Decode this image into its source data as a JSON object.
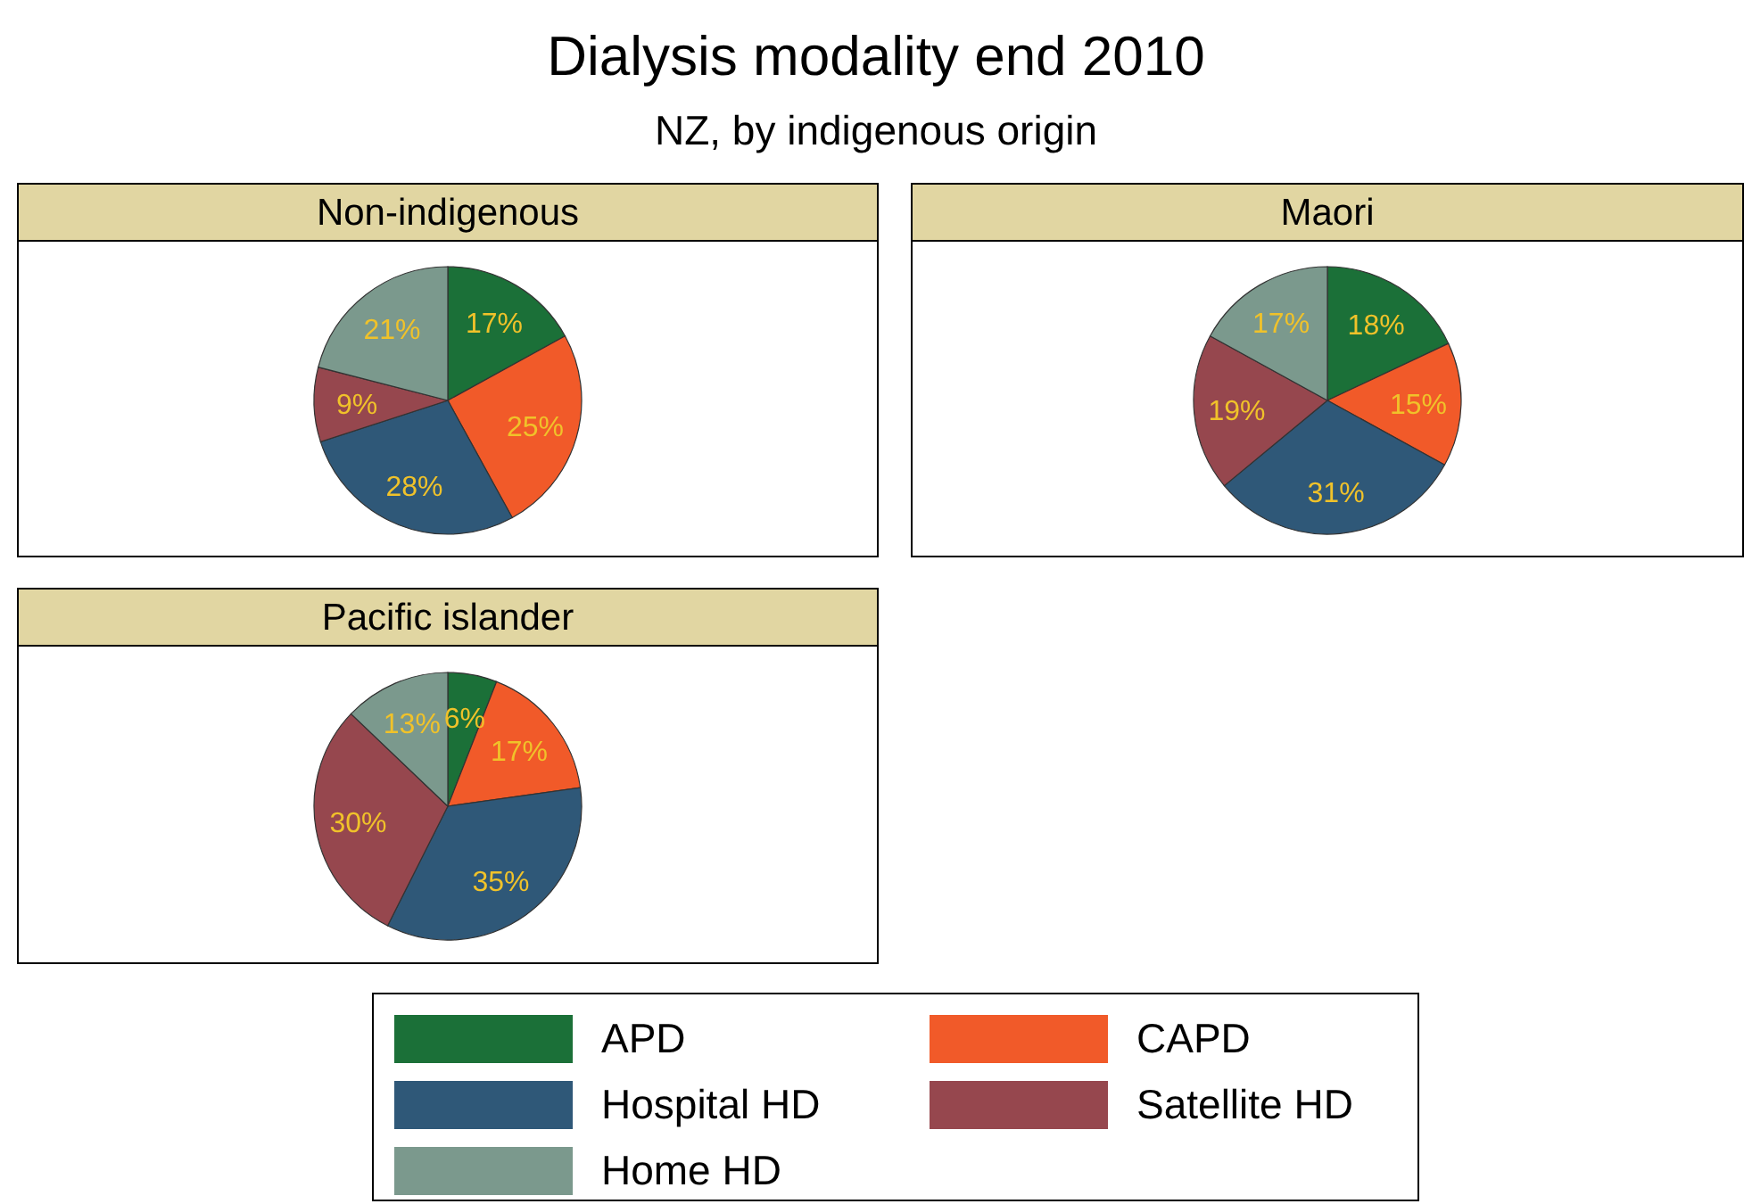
{
  "chart_data": [
    {
      "type": "other",
      "title": "Dialysis modality end 2010",
      "subtitle": "NZ, by indigenous origin"
    },
    {
      "type": "pie",
      "title": "Non-indigenous",
      "categories": [
        "APD",
        "CAPD",
        "Hospital HD",
        "Satellite HD",
        "Home HD"
      ],
      "values": [
        17,
        25,
        28,
        9,
        21
      ],
      "value_labels": [
        "17%",
        "25%",
        "28%",
        "9%",
        "21%"
      ],
      "colors": [
        "#1b7038",
        "#f15a29",
        "#2f5878",
        "#96474e",
        "#7b998d"
      ],
      "legend": "bottom"
    },
    {
      "type": "pie",
      "title": "Maori",
      "categories": [
        null,
        null,
        null,
        null,
        null
      ],
      "values": [
        18,
        15,
        31,
        19,
        17
      ],
      "value_labels": [
        "18%",
        "15%",
        "31%",
        "19%",
        "17%"
      ],
      "colors": [
        "#1b7038",
        "#f15a29",
        "#2f5878",
        "#96474e",
        "#7b998d"
      ]
    },
    {
      "type": "pie",
      "title": "Pacific islander",
      "categories": [
        null,
        null,
        null,
        null,
        null
      ],
      "values": [
        6,
        17,
        35,
        30,
        13
      ],
      "value_labels": [
        "6%",
        "17%",
        "35%",
        "30%",
        "13%"
      ],
      "colors": [
        "#1b7038",
        "#f15a29",
        "#2f5878",
        "#96474e",
        "#7b998d"
      ]
    }
  ]
}
